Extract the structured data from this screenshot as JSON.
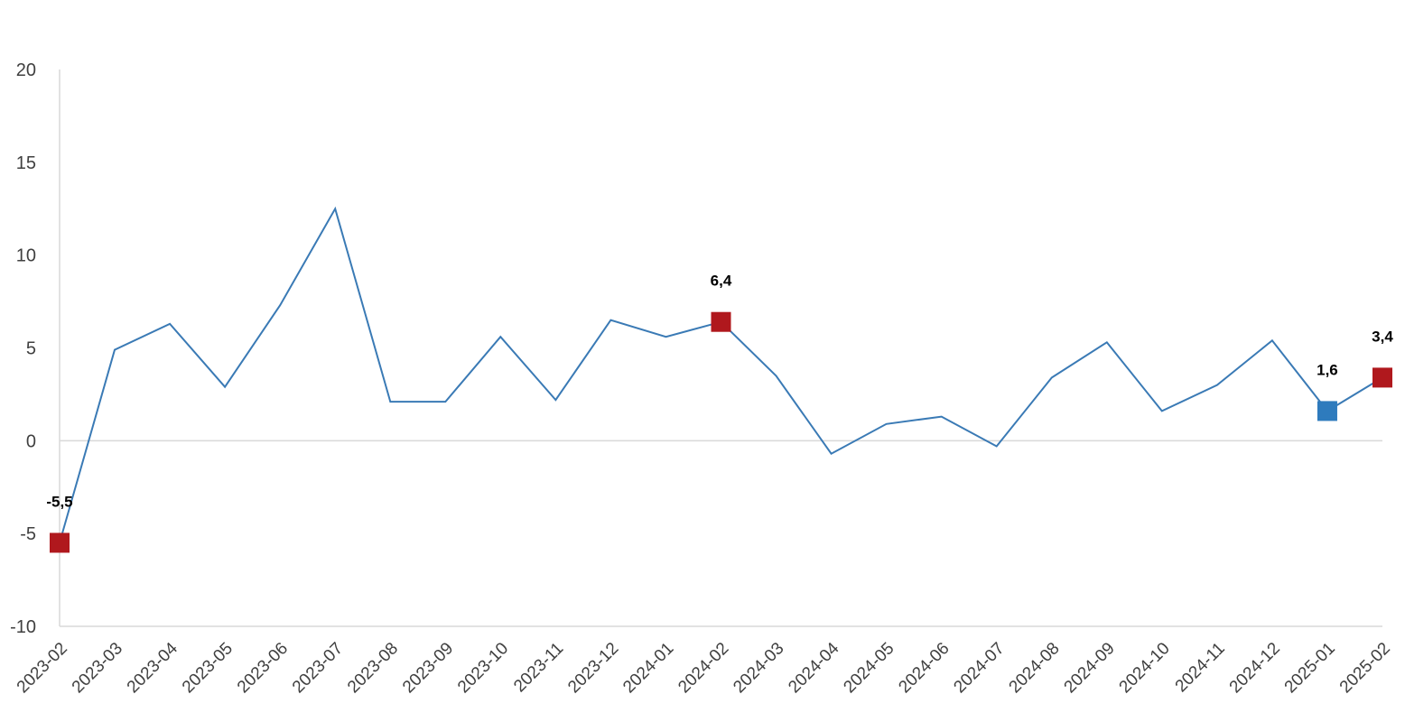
{
  "chart_data": {
    "type": "line",
    "title": "",
    "xlabel": "",
    "ylabel": "",
    "ylim": [
      -10,
      20
    ],
    "yticks": [
      20,
      15,
      10,
      5,
      0,
      -5,
      -10
    ],
    "grid": false,
    "legend": "none",
    "colors": {
      "line": "#3a7ab5",
      "highlight": "#b0181d",
      "current": "#2e7bbd",
      "axis": "#d9d9d9"
    },
    "categories": [
      "2023-02",
      "2023-03",
      "2023-04",
      "2023-05",
      "2023-06",
      "2023-07",
      "2023-08",
      "2023-09",
      "2023-10",
      "2023-11",
      "2023-12",
      "2024-01",
      "2024-02",
      "2024-03",
      "2024-04",
      "2024-05",
      "2024-06",
      "2024-07",
      "2024-08",
      "2024-09",
      "2024-10",
      "2024-11",
      "2024-12",
      "2025-01",
      "2025-02"
    ],
    "series": [
      {
        "values": [
          -5.5,
          4.9,
          6.3,
          2.9,
          7.3,
          12.5,
          2.1,
          2.1,
          5.6,
          2.2,
          6.5,
          5.6,
          6.4,
          3.5,
          -0.7,
          0.9,
          1.3,
          -0.3,
          3.4,
          5.3,
          1.6,
          3.0,
          5.4,
          1.6,
          3.4
        ]
      }
    ],
    "markers": [
      {
        "index": 0,
        "label": "-5,5",
        "color": "#b0181d"
      },
      {
        "index": 12,
        "label": "6,4",
        "color": "#b0181d"
      },
      {
        "index": 23,
        "label": "1,6",
        "color": "#2e7bbd"
      },
      {
        "index": 24,
        "label": "3,4",
        "color": "#b0181d"
      }
    ]
  }
}
